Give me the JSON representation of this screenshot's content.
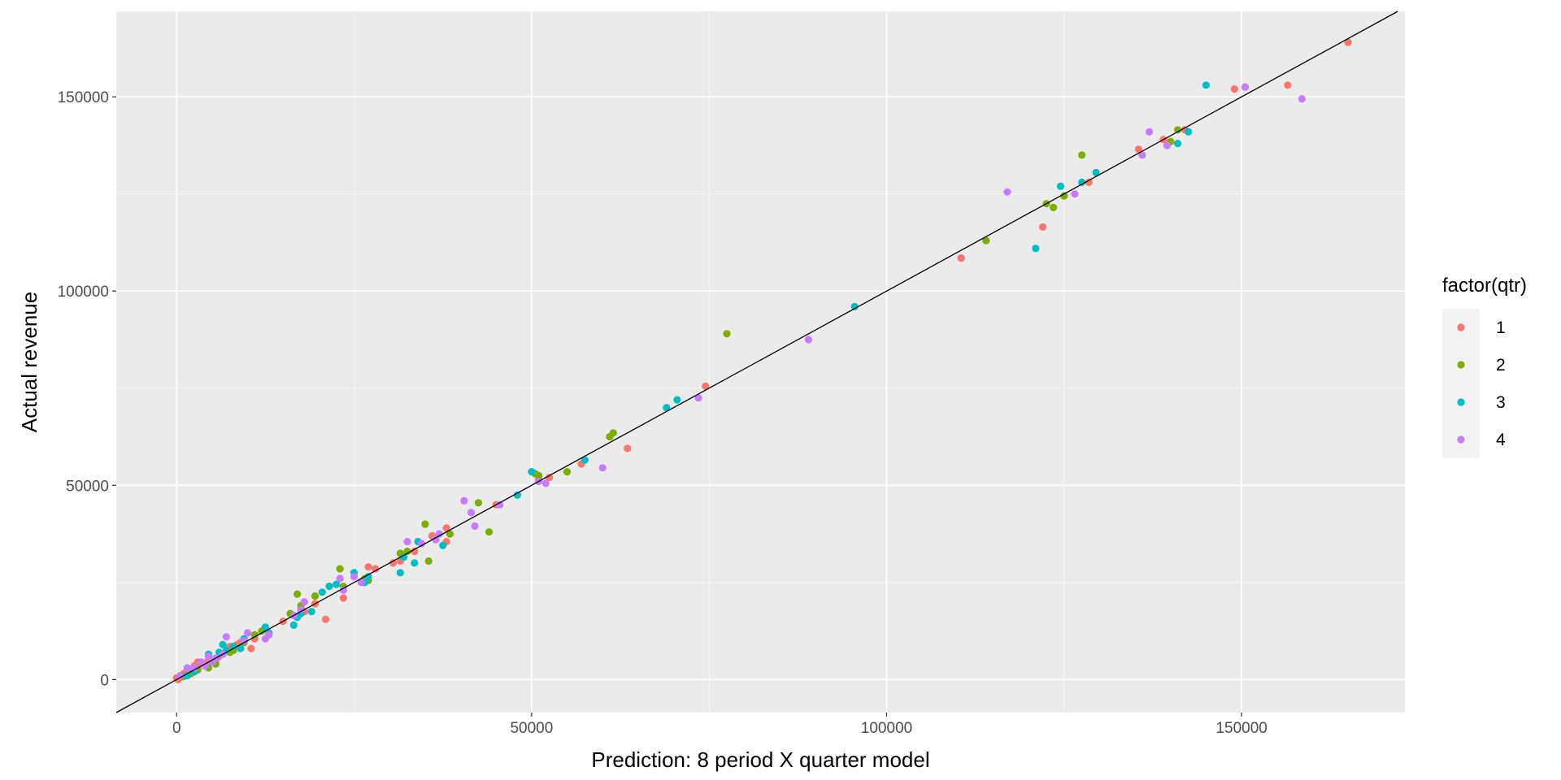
{
  "chart_data": {
    "type": "scatter",
    "title": "",
    "xlabel": "Prediction: 8 period X quarter model",
    "ylabel": "Actual revenue",
    "xlim": [
      -8500,
      173000
    ],
    "ylim": [
      -8500,
      172000
    ],
    "x_ticks": [
      0,
      50000,
      100000,
      150000
    ],
    "y_ticks": [
      0,
      50000,
      100000,
      150000
    ],
    "x_tick_labels": [
      "0",
      "50000",
      "100000",
      "150000"
    ],
    "y_tick_labels": [
      "0",
      "50000",
      "100000",
      "150000"
    ],
    "grid": true,
    "reference_line": {
      "slope": 1,
      "intercept": 0,
      "color": "#000000"
    },
    "legend": {
      "title": "factor(qtr)",
      "position": "right",
      "entries": [
        {
          "label": "1",
          "color": "#F8766D"
        },
        {
          "label": "2",
          "color": "#7CAE00"
        },
        {
          "label": "3",
          "color": "#00BFC4"
        },
        {
          "label": "4",
          "color": "#C77CFF"
        }
      ]
    },
    "series": [
      {
        "name": "1",
        "color": "#F8766D",
        "points": [
          [
            165000,
            164000
          ],
          [
            156500,
            153000
          ],
          [
            149000,
            152000
          ],
          [
            142000,
            141500
          ],
          [
            139000,
            139000
          ],
          [
            135500,
            136500
          ],
          [
            128500,
            128000
          ],
          [
            122000,
            116500
          ],
          [
            110500,
            108500
          ],
          [
            74500,
            75500
          ],
          [
            63500,
            59500
          ],
          [
            57000,
            55500
          ],
          [
            52500,
            52000
          ],
          [
            51000,
            51500
          ],
          [
            45000,
            45000
          ],
          [
            38000,
            39000
          ],
          [
            38000,
            35500
          ],
          [
            36000,
            37000
          ],
          [
            33500,
            33000
          ],
          [
            31500,
            30500
          ],
          [
            30500,
            30000
          ],
          [
            28000,
            28500
          ],
          [
            27000,
            29000
          ],
          [
            23500,
            21000
          ],
          [
            21000,
            15500
          ],
          [
            19500,
            19500
          ],
          [
            18000,
            17500
          ],
          [
            15000,
            15000
          ],
          [
            12500,
            13000
          ],
          [
            11000,
            10500
          ],
          [
            10500,
            8000
          ],
          [
            9000,
            9500
          ],
          [
            8500,
            9000
          ],
          [
            7500,
            8500
          ],
          [
            6000,
            6000
          ],
          [
            5500,
            5000
          ],
          [
            4500,
            5000
          ],
          [
            3500,
            4000
          ],
          [
            3000,
            4500
          ],
          [
            2500,
            3500
          ],
          [
            2000,
            2000
          ],
          [
            1500,
            2500
          ],
          [
            1000,
            1500
          ],
          [
            500,
            500
          ],
          [
            200,
            0
          ],
          [
            0,
            400
          ]
        ]
      },
      {
        "name": "2",
        "color": "#7CAE00",
        "points": [
          [
            150500,
            152500
          ],
          [
            141000,
            141500
          ],
          [
            140000,
            138500
          ],
          [
            127500,
            135000
          ],
          [
            125000,
            124500
          ],
          [
            123500,
            121500
          ],
          [
            122500,
            122500
          ],
          [
            114000,
            113000
          ],
          [
            77500,
            89000
          ],
          [
            61500,
            63500
          ],
          [
            61000,
            62500
          ],
          [
            55000,
            53500
          ],
          [
            51000,
            52500
          ],
          [
            50500,
            53000
          ],
          [
            44000,
            38000
          ],
          [
            42500,
            45500
          ],
          [
            38500,
            37500
          ],
          [
            35500,
            30500
          ],
          [
            35000,
            40000
          ],
          [
            32500,
            33000
          ],
          [
            31500,
            32500
          ],
          [
            27000,
            25500
          ],
          [
            26500,
            26000
          ],
          [
            23500,
            24000
          ],
          [
            23000,
            28500
          ],
          [
            19500,
            21500
          ],
          [
            17000,
            22000
          ],
          [
            17500,
            19000
          ],
          [
            16000,
            17000
          ],
          [
            12000,
            12500
          ],
          [
            11000,
            11500
          ],
          [
            9500,
            9500
          ],
          [
            8000,
            7500
          ],
          [
            7500,
            7000
          ],
          [
            5500,
            4000
          ],
          [
            4500,
            3000
          ],
          [
            3000,
            2500
          ],
          [
            2000,
            1500
          ],
          [
            1000,
            800
          ]
        ]
      },
      {
        "name": "3",
        "color": "#00BFC4",
        "points": [
          [
            145000,
            153000
          ],
          [
            142500,
            141000
          ],
          [
            141000,
            138000
          ],
          [
            129500,
            130500
          ],
          [
            127500,
            128000
          ],
          [
            124500,
            127000
          ],
          [
            121000,
            111000
          ],
          [
            95500,
            96000
          ],
          [
            70500,
            72000
          ],
          [
            69000,
            70000
          ],
          [
            57500,
            56500
          ],
          [
            50000,
            53500
          ],
          [
            48000,
            47500
          ],
          [
            37500,
            34500
          ],
          [
            34000,
            35500
          ],
          [
            33500,
            30000
          ],
          [
            32000,
            31500
          ],
          [
            31500,
            27500
          ],
          [
            27000,
            26500
          ],
          [
            26500,
            25000
          ],
          [
            25000,
            27500
          ],
          [
            22500,
            24500
          ],
          [
            21500,
            24000
          ],
          [
            20500,
            22500
          ],
          [
            19000,
            17500
          ],
          [
            17500,
            17000
          ],
          [
            17000,
            16000
          ],
          [
            16500,
            14000
          ],
          [
            13000,
            12000
          ],
          [
            12500,
            13500
          ],
          [
            9500,
            10500
          ],
          [
            9000,
            8000
          ],
          [
            8000,
            8500
          ],
          [
            7000,
            7500
          ],
          [
            6500,
            9000
          ],
          [
            6000,
            7000
          ],
          [
            4500,
            6500
          ],
          [
            2500,
            2000
          ],
          [
            1500,
            1000
          ]
        ]
      },
      {
        "name": "4",
        "color": "#C77CFF",
        "points": [
          [
            158500,
            149500
          ],
          [
            150500,
            152500
          ],
          [
            139500,
            137500
          ],
          [
            137000,
            141000
          ],
          [
            136000,
            135000
          ],
          [
            126500,
            125000
          ],
          [
            117000,
            125500
          ],
          [
            89000,
            87500
          ],
          [
            73500,
            72500
          ],
          [
            60000,
            54500
          ],
          [
            52000,
            50500
          ],
          [
            51000,
            51000
          ],
          [
            45500,
            45000
          ],
          [
            42000,
            39500
          ],
          [
            41500,
            43000
          ],
          [
            40500,
            46000
          ],
          [
            37000,
            37500
          ],
          [
            36500,
            36000
          ],
          [
            34500,
            35000
          ],
          [
            32500,
            35500
          ],
          [
            26000,
            25000
          ],
          [
            25000,
            26500
          ],
          [
            23500,
            23000
          ],
          [
            23000,
            26000
          ],
          [
            18000,
            20000
          ],
          [
            17500,
            18000
          ],
          [
            16500,
            16500
          ],
          [
            13000,
            11500
          ],
          [
            12500,
            10500
          ],
          [
            10000,
            12000
          ],
          [
            9500,
            10000
          ],
          [
            7000,
            11000
          ],
          [
            6500,
            6500
          ],
          [
            5500,
            5500
          ],
          [
            5000,
            4500
          ],
          [
            4500,
            6000
          ],
          [
            4000,
            3500
          ],
          [
            3500,
            4500
          ],
          [
            2500,
            3000
          ],
          [
            1500,
            3000
          ],
          [
            500,
            1000
          ]
        ]
      }
    ]
  }
}
